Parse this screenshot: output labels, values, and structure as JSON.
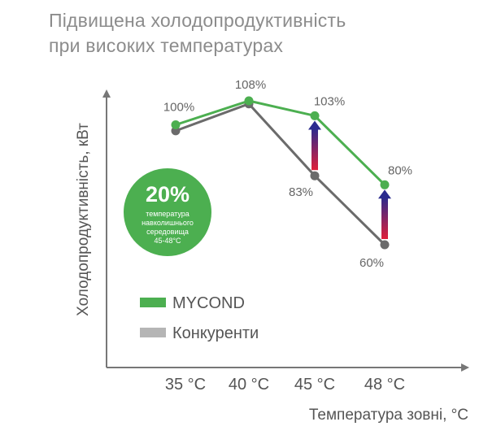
{
  "title_lines": [
    "Підвищена холодопродуктивність",
    "при високих температурах"
  ],
  "badge": {
    "value": "20%",
    "text_lines": [
      "температура",
      "навколишнього",
      "середовища",
      "45-48°С"
    ],
    "color": "#4caf50"
  },
  "chart_data": {
    "type": "line",
    "categories": [
      "35 °С",
      "40 °С",
      "45 °С",
      "48 °С"
    ],
    "xlabel": "Температура зовні, °С",
    "ylabel": "Холодопродуктивність, кВт",
    "series": [
      {
        "name": "MYCOND",
        "color": "#4caf50",
        "values": [
          100,
          108,
          103,
          80
        ],
        "labels": [
          "100%",
          "108%",
          "103%",
          "80%"
        ]
      },
      {
        "name": "Конкуренти",
        "color": "#6b6b6b",
        "legend_color": "#b5b5b5",
        "values": [
          98,
          107,
          83,
          60
        ],
        "labels": [
          "",
          "",
          "83%",
          "60%"
        ]
      }
    ],
    "arrows_between_series_at": [
      "45 °С",
      "48 °С"
    ],
    "ylim": [
      22,
      115
    ],
    "legend_placement": "lower-left inside plot",
    "grid": false
  }
}
